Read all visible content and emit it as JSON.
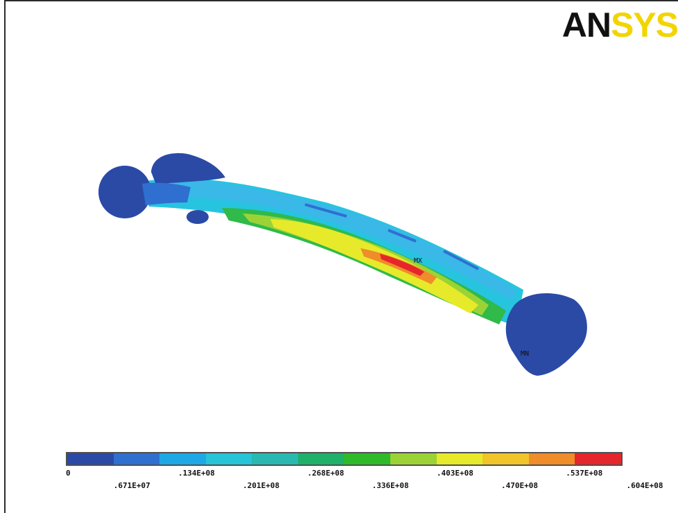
{
  "logo": {
    "part1": "AN",
    "part2": "SYS"
  },
  "labels": {
    "max": "MX",
    "min": "MN"
  },
  "legend": {
    "colors": [
      "#2b4aa6",
      "#2f6fd0",
      "#1fa8e6",
      "#27c4d8",
      "#29b9b0",
      "#1fb06a",
      "#2fba2a",
      "#9bd336",
      "#e7ea2a",
      "#f1c42a",
      "#f08c2a",
      "#e5262a"
    ],
    "ticks": [
      "0",
      ".671E+07",
      ".134E+08",
      ".201E+08",
      ".268E+08",
      ".336E+08",
      ".403E+08",
      ".470E+08",
      ".537E+08",
      ".604E+08"
    ]
  }
}
